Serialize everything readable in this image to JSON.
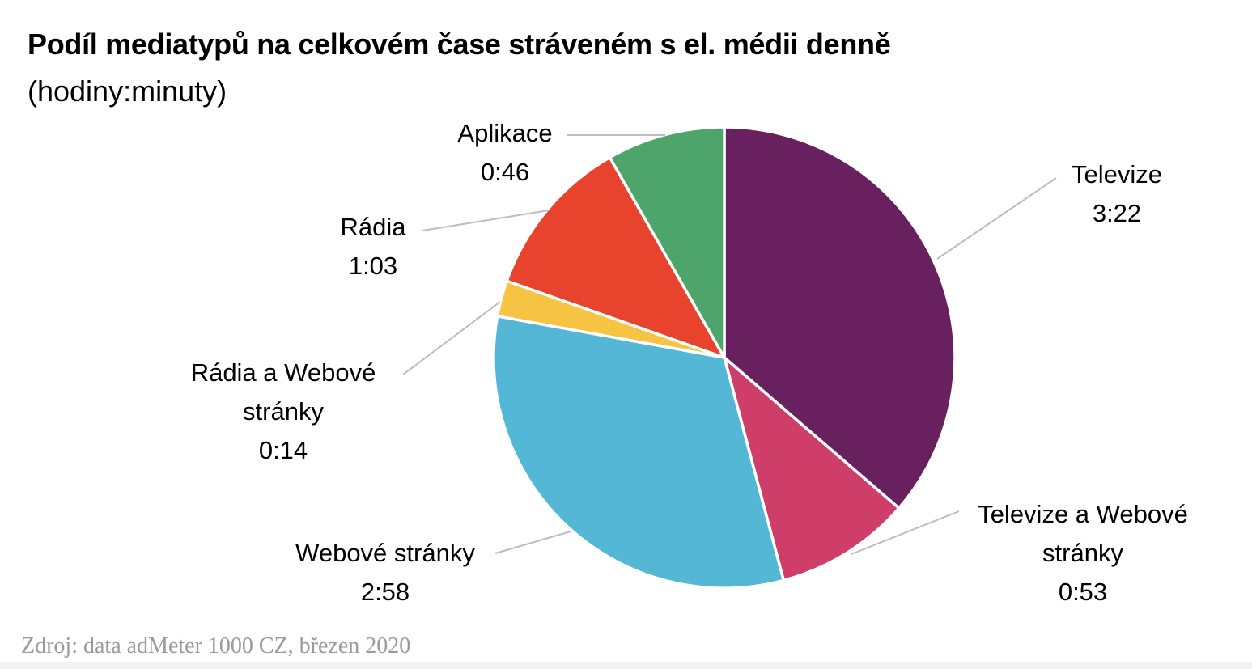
{
  "title": "Podíl mediatypů na celkovém čase stráveném s el. médii denně",
  "subtitle": "(hodiny:minuty)",
  "source": "Zdroj: data adMeter 1000 CZ, březen 2020",
  "chart_data": {
    "type": "pie",
    "title": "Podíl mediatypů na celkovém čase stráveném s el. médii denně",
    "subtitle": "(hodiny:minuty)",
    "start": "12 o'clock",
    "direction": "clockwise",
    "slices": [
      {
        "label_lines": [
          "Televize"
        ],
        "value_text": "3:22",
        "minutes": 202,
        "color": "#69205f"
      },
      {
        "label_lines": [
          "Televize a Webové",
          "stránky"
        ],
        "value_text": "0:53",
        "minutes": 53,
        "color": "#cf3e69"
      },
      {
        "label_lines": [
          "Webové stránky"
        ],
        "value_text": "2:58",
        "minutes": 178,
        "color": "#53b7d5"
      },
      {
        "label_lines": [
          "Rádia a Webové",
          "stránky"
        ],
        "value_text": "0:14",
        "minutes": 14,
        "color": "#f6c343"
      },
      {
        "label_lines": [
          "Rádia"
        ],
        "value_text": "1:03",
        "minutes": 63,
        "color": "#e8432c"
      },
      {
        "label_lines": [
          "Aplikace"
        ],
        "value_text": "0:46",
        "minutes": 46,
        "color": "#4ea56b"
      }
    ]
  }
}
